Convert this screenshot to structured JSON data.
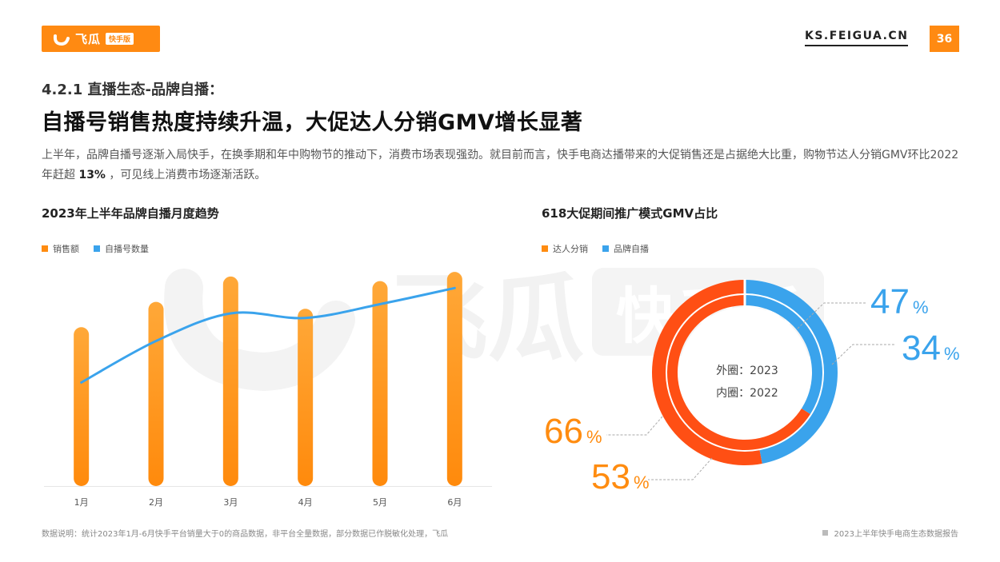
{
  "header": {
    "logo_text": "飞瓜",
    "logo_tag": "快手版",
    "site": "KS.FEIGUA.CN",
    "page_number": "36"
  },
  "section_label": "4.2.1 直播生态-品牌自播：",
  "headline": "自播号销售热度持续升温，大促达人分销GMV增长显著",
  "description": {
    "part1": "上半年，品牌自播号逐渐入局快手，在换季期和年中购物节的推动下，消费市场表现强劲。就目前而言，快手电商达播带来的大促销售还是占据绝大比重，购物节达人分销GMV环比2022年赶超 ",
    "highlight": "13%",
    "part2": " ，可见线上消费市场逐渐活跃。"
  },
  "watermark": {
    "text": "飞瓜",
    "tag": "快手版"
  },
  "colors": {
    "orange": "#ff8c10",
    "blue": "#3aa3ec",
    "red_orange": "#ff4f14",
    "gray": "#999999"
  },
  "chart_data": [
    {
      "type": "bar",
      "title": "2023年上半年品牌自播月度趋势",
      "categories": [
        "1月",
        "2月",
        "3月",
        "4月",
        "5月",
        "6月"
      ],
      "series": [
        {
          "name": "销售额",
          "type": "bar",
          "values": [
            69,
            80,
            91,
            77,
            89,
            93
          ]
        },
        {
          "name": "自播号数量",
          "type": "line",
          "values": [
            45,
            63,
            75,
            73,
            79,
            86
          ]
        }
      ],
      "ylim": [
        0,
        100
      ],
      "legend": "top-left",
      "grid": false
    },
    {
      "type": "pie",
      "title": "618大促期间推广模式GMV占比",
      "series": [
        {
          "name": "外圈：2023",
          "values": [
            {
              "label": "达人分销",
              "value": 53
            },
            {
              "label": "品牌自播",
              "value": 47
            }
          ]
        },
        {
          "name": "内圈：2022",
          "values": [
            {
              "label": "达人分销",
              "value": 66
            },
            {
              "label": "品牌自播",
              "value": 34
            }
          ]
        }
      ],
      "legend": [
        "达人分销",
        "品牌自播"
      ],
      "center_labels": [
        "外圈：2023",
        "内圈：2022"
      ],
      "data_labels": [
        {
          "value": "47",
          "unit": "%",
          "series": "品牌自播",
          "ring": "outer"
        },
        {
          "value": "34",
          "unit": "%",
          "series": "品牌自播",
          "ring": "inner"
        },
        {
          "value": "66",
          "unit": "%",
          "series": "达人分销",
          "ring": "inner"
        },
        {
          "value": "53",
          "unit": "%",
          "series": "达人分销",
          "ring": "outer"
        }
      ]
    }
  ],
  "footnote": "数据说明：统计2023年1月-6月快手平台销量大于0的商品数据，非平台全量数据，部分数据已作脱敏化处理，飞瓜",
  "report_name": "2023上半年快手电商生态数据报告"
}
